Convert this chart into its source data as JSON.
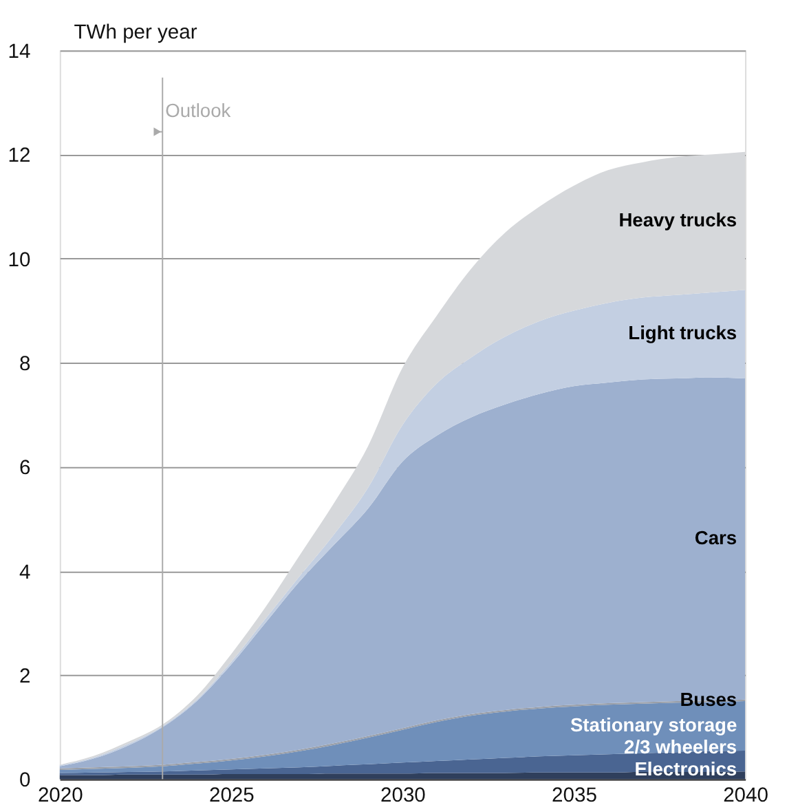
{
  "chart_data": {
    "type": "area",
    "stacked": true,
    "ylabel": "TWh per year",
    "x": [
      2020,
      2021,
      2022,
      2023,
      2024,
      2025,
      2026,
      2027,
      2028,
      2029,
      2030,
      2031,
      2032,
      2033,
      2034,
      2035,
      2036,
      2037,
      2038,
      2039,
      2040
    ],
    "series": [
      {
        "name": "Electronics",
        "color": "#2f3f5c",
        "values": [
          0.08,
          0.08,
          0.09,
          0.09,
          0.09,
          0.1,
          0.1,
          0.1,
          0.11,
          0.11,
          0.11,
          0.12,
          0.12,
          0.12,
          0.13,
          0.13,
          0.13,
          0.14,
          0.14,
          0.14,
          0.15
        ]
      },
      {
        "name": "2/3 wheelers",
        "color": "#4a6592",
        "values": [
          0.04,
          0.05,
          0.05,
          0.06,
          0.08,
          0.09,
          0.11,
          0.13,
          0.15,
          0.18,
          0.21,
          0.23,
          0.26,
          0.29,
          0.31,
          0.33,
          0.35,
          0.36,
          0.38,
          0.4,
          0.4
        ]
      },
      {
        "name": "Stationary storage",
        "color": "#6f8fba",
        "values": [
          0.06,
          0.07,
          0.08,
          0.1,
          0.13,
          0.17,
          0.23,
          0.31,
          0.4,
          0.51,
          0.63,
          0.75,
          0.84,
          0.89,
          0.92,
          0.94,
          0.95,
          0.95,
          0.95,
          0.94,
          0.95
        ]
      },
      {
        "name": "Buses",
        "color": "#9a9fa8",
        "values": [
          0.03,
          0.03,
          0.03,
          0.03,
          0.03,
          0.03,
          0.03,
          0.03,
          0.03,
          0.03,
          0.03,
          0.03,
          0.03,
          0.03,
          0.03,
          0.03,
          0.03,
          0.03,
          0.03,
          0.03,
          0.03
        ]
      },
      {
        "name": "Cars",
        "color": "#9db0cf",
        "values": [
          0.04,
          0.17,
          0.4,
          0.72,
          1.17,
          1.81,
          2.53,
          3.23,
          3.81,
          4.37,
          5.12,
          5.47,
          5.7,
          5.87,
          6.01,
          6.12,
          6.16,
          6.2,
          6.2,
          6.21,
          6.17
        ]
      },
      {
        "name": "Light trucks",
        "color": "#c3cfe2",
        "values": [
          0.02,
          0.02,
          0.03,
          0.02,
          0.03,
          0.05,
          0.08,
          0.1,
          0.2,
          0.4,
          0.7,
          1.0,
          1.15,
          1.3,
          1.4,
          1.45,
          1.53,
          1.57,
          1.6,
          1.63,
          1.7
        ]
      },
      {
        "name": "Heavy trucks",
        "color": "#d6d8db",
        "values": [
          0.01,
          0.03,
          0.04,
          0.03,
          0.07,
          0.15,
          0.22,
          0.4,
          0.6,
          0.8,
          1.1,
          1.3,
          1.7,
          2.0,
          2.2,
          2.4,
          2.55,
          2.6,
          2.65,
          2.65,
          2.65
        ]
      }
    ],
    "xlim": [
      2020,
      2040
    ],
    "xticks": [
      2020,
      2025,
      2030,
      2035,
      2040
    ],
    "ylim": [
      0,
      14
    ],
    "yticks": [
      0,
      2,
      4,
      6,
      8,
      10,
      12,
      14
    ],
    "grid": "y",
    "legend": false,
    "ref_lines": [
      {
        "axis": "x",
        "value": 2023,
        "label": "Outlook",
        "color": "#aaaaaa"
      }
    ]
  }
}
